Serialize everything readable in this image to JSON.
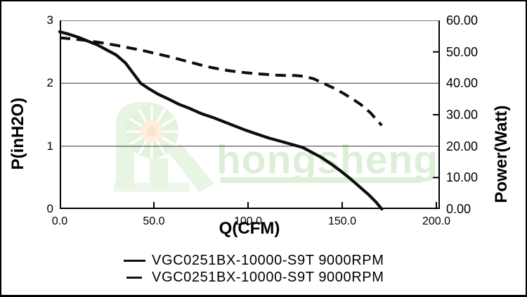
{
  "watermark": {
    "brand": "hongsheng",
    "logo": "fan-pinwheel-logo",
    "color_green": "#dcf0d7",
    "color_green_soft": "#e8f5e3",
    "color_orange": "#fdeedd"
  },
  "colors": {
    "curve": "#0d0d0d",
    "grid": "#4d4d4d",
    "axis": "#000000",
    "plot_top_border": "#7f7f7f",
    "frame_border": "#000000",
    "background": "#ffffff"
  },
  "legend": {
    "entries": [
      {
        "label": "VGC0251BX-10000-S9T 9000RPM",
        "style": "solid"
      },
      {
        "label": "VGC0251BX-10000-S9T 9000RPM",
        "style": "dashed"
      }
    ]
  },
  "chart_data": {
    "type": "line",
    "title": "",
    "xlabel": "Q(CFM)",
    "ylabel_left": "P(inH2O)",
    "ylabel_right": "Power(Watt)",
    "legend_position": "bottom",
    "grid": "horizontal",
    "x_axis": {
      "min": 0,
      "max": 200,
      "ticks": [
        0,
        50,
        100,
        150,
        200
      ],
      "tick_labels": [
        "0.0",
        "50.0",
        "100.0",
        "150.0",
        "200.0"
      ]
    },
    "y_left_axis": {
      "min": 0,
      "max": 3,
      "ticks_top_to_bottom": [
        3,
        2,
        1,
        0
      ],
      "tick_labels": [
        "3",
        "2",
        "1",
        "0"
      ]
    },
    "y_right_axis": {
      "min": 0,
      "max": 60,
      "ticks_top_to_bottom": [
        60,
        50,
        40,
        30,
        20,
        10,
        0
      ],
      "tick_labels": [
        "60.00",
        "50.00",
        "40.00",
        "30.00",
        "20.00",
        "10.00",
        "0.00"
      ]
    },
    "gridline_left_values": [
      2,
      1
    ],
    "series": [
      {
        "name": "VGC0251BX-10000-S9T 9000RPM",
        "line_style": "solid",
        "y_axis": "left",
        "unit": "inH2O",
        "points": [
          [
            0,
            2.82
          ],
          [
            5,
            2.78
          ],
          [
            10,
            2.73
          ],
          [
            15,
            2.67
          ],
          [
            20,
            2.61
          ],
          [
            25,
            2.53
          ],
          [
            30,
            2.45
          ],
          [
            35,
            2.32
          ],
          [
            40,
            2.12
          ],
          [
            43,
            2.0
          ],
          [
            47,
            1.92
          ],
          [
            52,
            1.83
          ],
          [
            57,
            1.76
          ],
          [
            63,
            1.67
          ],
          [
            69,
            1.6
          ],
          [
            75,
            1.52
          ],
          [
            81,
            1.46
          ],
          [
            87,
            1.39
          ],
          [
            93,
            1.32
          ],
          [
            99,
            1.25
          ],
          [
            105,
            1.19
          ],
          [
            111,
            1.13
          ],
          [
            117,
            1.08
          ],
          [
            123,
            1.03
          ],
          [
            129,
            0.98
          ],
          [
            134,
            0.9
          ],
          [
            139,
            0.82
          ],
          [
            144,
            0.72
          ],
          [
            149,
            0.61
          ],
          [
            154,
            0.49
          ],
          [
            159,
            0.36
          ],
          [
            164,
            0.23
          ],
          [
            168,
            0.11
          ],
          [
            171,
            0.0
          ]
        ]
      },
      {
        "name": "VGC0251BX-10000-S9T 9000RPM",
        "line_style": "dashed",
        "y_axis": "right",
        "unit": "Watt",
        "points": [
          [
            0,
            54.5
          ],
          [
            5,
            54.2
          ],
          [
            10,
            53.9
          ],
          [
            15,
            53.5
          ],
          [
            20,
            53.1
          ],
          [
            25,
            52.6
          ],
          [
            30,
            52.1
          ],
          [
            35,
            51.5
          ],
          [
            40,
            50.9
          ],
          [
            45,
            50.3
          ],
          [
            50,
            49.6
          ],
          [
            55,
            48.9
          ],
          [
            60,
            48.2
          ],
          [
            65,
            47.4
          ],
          [
            70,
            46.6
          ],
          [
            75,
            45.8
          ],
          [
            80,
            45.1
          ],
          [
            85,
            44.5
          ],
          [
            90,
            44.0
          ],
          [
            95,
            43.6
          ],
          [
            100,
            43.3
          ],
          [
            105,
            43.0
          ],
          [
            110,
            42.8
          ],
          [
            115,
            42.6
          ],
          [
            120,
            42.5
          ],
          [
            125,
            42.5
          ],
          [
            130,
            42.2
          ],
          [
            135,
            41.4
          ],
          [
            140,
            40.0
          ],
          [
            145,
            38.6
          ],
          [
            150,
            37.0
          ],
          [
            155,
            35.2
          ],
          [
            160,
            33.2
          ],
          [
            165,
            30.6
          ],
          [
            168,
            28.6
          ],
          [
            171,
            26.6
          ]
        ]
      }
    ]
  }
}
